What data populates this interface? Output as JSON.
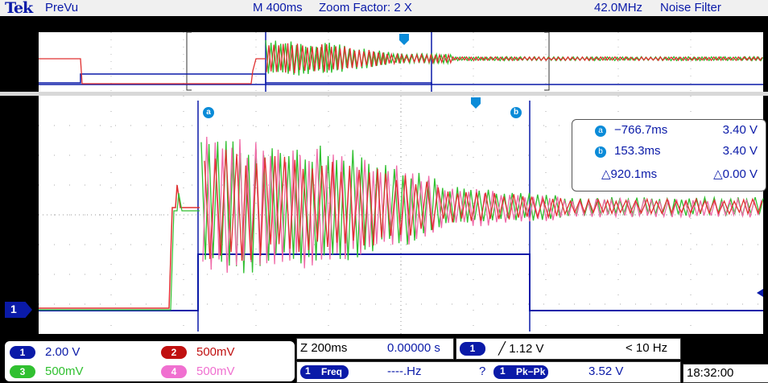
{
  "header": {
    "logo": "Tek",
    "mode": "PreVu",
    "timebase": "M 400ms",
    "zoom_factor": "Zoom Factor: 2 X",
    "bandwidth": "42.0MHz",
    "filter": "Noise Filter"
  },
  "cursors": {
    "a_label": "a",
    "b_label": "b",
    "a_time": "−766.7ms",
    "a_volt": "3.40 V",
    "b_time": "153.3ms",
    "b_volt": "3.40 V",
    "delta_time": "△920.1ms",
    "delta_volt": "△0.00 V"
  },
  "channels": [
    {
      "id": "1",
      "scale": "2.00 V",
      "color": "#0a1aa8"
    },
    {
      "id": "2",
      "scale": "500mV",
      "color": "#c01010"
    },
    {
      "id": "3",
      "scale": "500mV",
      "color": "#30c030"
    },
    {
      "id": "4",
      "scale": "500mV",
      "color": "#f070d0"
    }
  ],
  "ground_marker": "1",
  "zoom": {
    "scale": "Z 200ms",
    "position": "0.00000 s"
  },
  "trigger": {
    "source": "1",
    "level": "╱ 1.12 V",
    "freq": "< 10 Hz"
  },
  "measurements": {
    "m1_source": "1",
    "m1_type": "Freq",
    "m1_value": "----.Hz",
    "m1_flag": "?",
    "m2_source": "1",
    "m2_type": "Pk−Pk",
    "m2_value": "3.52 V"
  },
  "clock": "18:32:00"
}
